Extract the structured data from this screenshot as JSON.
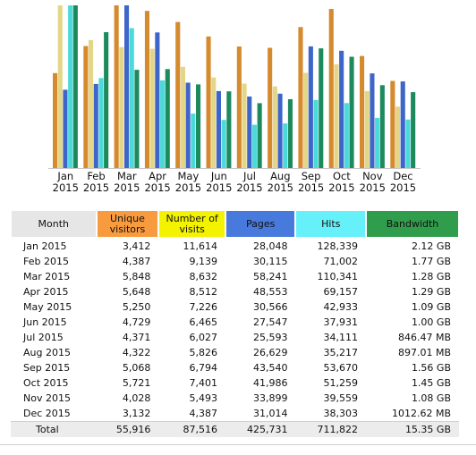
{
  "colors": {
    "visitors": "#d58a2e",
    "visits": "#e3d686",
    "pages": "#3e65c9",
    "hits": "#4bd9d9",
    "bandwidth": "#1d8a5e"
  },
  "chart_data": {
    "type": "bar",
    "categories": [
      "Jan 2015",
      "Feb 2015",
      "Mar 2015",
      "Apr 2015",
      "May 2015",
      "Jun 2015",
      "Jul 2015",
      "Aug 2015",
      "Sep 2015",
      "Oct 2015",
      "Nov 2015",
      "Dec 2015"
    ],
    "category_lines": [
      [
        "Jan",
        "2015"
      ],
      [
        "Feb",
        "2015"
      ],
      [
        "Mar",
        "2015"
      ],
      [
        "Apr",
        "2015"
      ],
      [
        "May",
        "2015"
      ],
      [
        "Jun",
        "2015"
      ],
      [
        "Jul",
        "2015"
      ],
      [
        "Aug",
        "2015"
      ],
      [
        "Sep",
        "2015"
      ],
      [
        "Oct",
        "2015"
      ],
      [
        "Nov",
        "2015"
      ],
      [
        "Dec",
        "2015"
      ]
    ],
    "series": [
      {
        "name": "Unique visitors",
        "key": "visitors",
        "values": [
          3412,
          4387,
          5848,
          5648,
          5250,
          4729,
          4371,
          4322,
          5068,
          5721,
          4028,
          3132
        ]
      },
      {
        "name": "Number of visits",
        "key": "visits",
        "values": [
          11614,
          9139,
          8632,
          8512,
          7226,
          6465,
          6027,
          5826,
          6794,
          7401,
          5493,
          4387
        ]
      },
      {
        "name": "Pages",
        "key": "pages",
        "values": [
          28048,
          30115,
          58241,
          48553,
          30566,
          27547,
          25593,
          26629,
          43540,
          41986,
          33899,
          31014
        ]
      },
      {
        "name": "Hits",
        "key": "hits",
        "values": [
          128339,
          71002,
          110341,
          69157,
          42933,
          37931,
          34111,
          35217,
          53670,
          51259,
          39559,
          38303
        ]
      },
      {
        "name": "Bandwidth",
        "key": "bandwidth",
        "values": [
          2.12,
          1.77,
          1.28,
          1.29,
          1.09,
          1.0,
          0.846,
          0.897,
          1.56,
          1.45,
          1.08,
          0.989
        ],
        "unit": "GB"
      }
    ]
  },
  "table": {
    "headers": {
      "month": "Month",
      "visitors_line1": "Unique",
      "visitors_line2": "visitors",
      "visits_line1": "Number of",
      "visits_line2": "visits",
      "pages": "Pages",
      "hits": "Hits",
      "bandwidth": "Bandwidth"
    },
    "rows": [
      {
        "month": "Jan 2015",
        "visitors": "3,412",
        "visits": "11,614",
        "pages": "28,048",
        "hits": "128,339",
        "bandwidth": "2.12 GB"
      },
      {
        "month": "Feb 2015",
        "visitors": "4,387",
        "visits": "9,139",
        "pages": "30,115",
        "hits": "71,002",
        "bandwidth": "1.77 GB"
      },
      {
        "month": "Mar 2015",
        "visitors": "5,848",
        "visits": "8,632",
        "pages": "58,241",
        "hits": "110,341",
        "bandwidth": "1.28 GB"
      },
      {
        "month": "Apr 2015",
        "visitors": "5,648",
        "visits": "8,512",
        "pages": "48,553",
        "hits": "69,157",
        "bandwidth": "1.29 GB"
      },
      {
        "month": "May 2015",
        "visitors": "5,250",
        "visits": "7,226",
        "pages": "30,566",
        "hits": "42,933",
        "bandwidth": "1.09 GB"
      },
      {
        "month": "Jun 2015",
        "visitors": "4,729",
        "visits": "6,465",
        "pages": "27,547",
        "hits": "37,931",
        "bandwidth": "1.00 GB"
      },
      {
        "month": "Jul 2015",
        "visitors": "4,371",
        "visits": "6,027",
        "pages": "25,593",
        "hits": "34,111",
        "bandwidth": "846.47 MB"
      },
      {
        "month": "Aug 2015",
        "visitors": "4,322",
        "visits": "5,826",
        "pages": "26,629",
        "hits": "35,217",
        "bandwidth": "897.01 MB"
      },
      {
        "month": "Sep 2015",
        "visitors": "5,068",
        "visits": "6,794",
        "pages": "43,540",
        "hits": "53,670",
        "bandwidth": "1.56 GB"
      },
      {
        "month": "Oct 2015",
        "visitors": "5,721",
        "visits": "7,401",
        "pages": "41,986",
        "hits": "51,259",
        "bandwidth": "1.45 GB"
      },
      {
        "month": "Nov 2015",
        "visitors": "4,028",
        "visits": "5,493",
        "pages": "33,899",
        "hits": "39,559",
        "bandwidth": "1.08 GB"
      },
      {
        "month": "Dec 2015",
        "visitors": "3,132",
        "visits": "4,387",
        "pages": "31,014",
        "hits": "38,303",
        "bandwidth": "1012.62 MB"
      }
    ],
    "total": {
      "month": "Total",
      "visitors": "55,916",
      "visits": "87,516",
      "pages": "425,731",
      "hits": "711,822",
      "bandwidth": "15.35 GB"
    }
  }
}
